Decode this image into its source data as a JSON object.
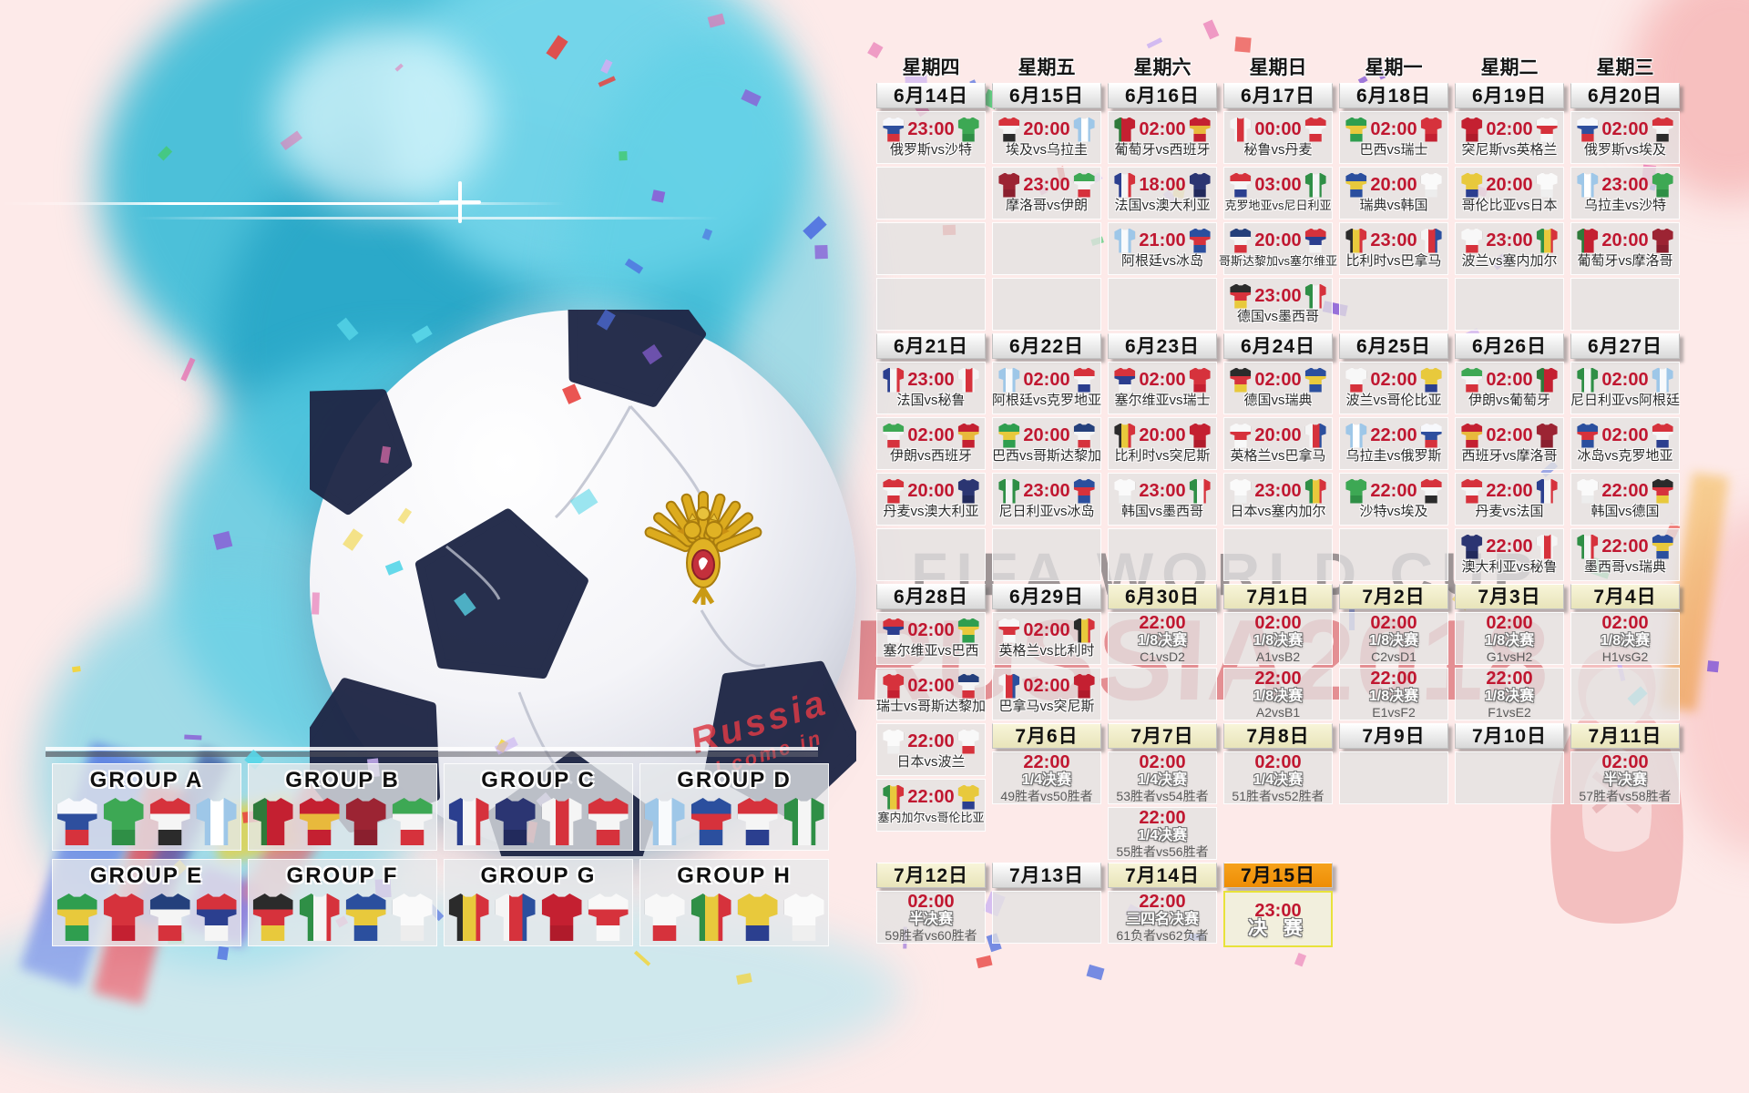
{
  "poster": {
    "watermark_title": "FIFA WORLD CUP",
    "watermark_subtitle": "RUSSIA2018",
    "ball_handwriting_line1": "Russia",
    "ball_handwriting_line2": "I come in"
  },
  "colors": {
    "accent_red": "#c01730",
    "cell_bg": "#e3e1e2",
    "header_gold": "#f2efcc",
    "header_orange": "#f0930f",
    "final_border": "#e8e23a",
    "teal_splash": "#4ec6de",
    "pink_bg": "#fdeae9"
  },
  "team_colors": {
    "俄罗斯": {
      "d": "h",
      "c": [
        "#f7f8fc",
        "#2e4f9e",
        "#d6323c"
      ]
    },
    "沙特": {
      "d": "h",
      "c": [
        "#3da854",
        "#3da854",
        "#2f8f46"
      ]
    },
    "埃及": {
      "d": "h",
      "c": [
        "#d6323c",
        "#f5f5f5",
        "#2b2b2b"
      ]
    },
    "乌拉圭": {
      "d": "v",
      "c": [
        "#9ec7e8",
        "#ffffff",
        "#9ec7e8"
      ]
    },
    "葡萄牙": {
      "d": "v",
      "c": [
        "#2f7a3a",
        "#c42031",
        "#c42031"
      ]
    },
    "西班牙": {
      "d": "h",
      "c": [
        "#c42031",
        "#e8b93c",
        "#c42031"
      ]
    },
    "摩洛哥": {
      "d": "h",
      "c": [
        "#9c2433",
        "#9c2433",
        "#8a1f2e"
      ]
    },
    "伊朗": {
      "d": "h",
      "c": [
        "#3da854",
        "#f5f5f5",
        "#d6323c"
      ]
    },
    "法国": {
      "d": "v",
      "c": [
        "#2b3f8f",
        "#f5f5f5",
        "#d6323c"
      ]
    },
    "澳大利亚": {
      "d": "h",
      "c": [
        "#2b3572",
        "#2b3572",
        "#222a5c"
      ]
    },
    "秘鲁": {
      "d": "v",
      "c": [
        "#f5f5f5",
        "#d6323c",
        "#f5f5f5"
      ]
    },
    "丹麦": {
      "d": "h",
      "c": [
        "#d6323c",
        "#f5f5f5",
        "#d6323c"
      ]
    },
    "阿根廷": {
      "d": "v",
      "c": [
        "#9ec7e8",
        "#f8fafc",
        "#9ec7e8"
      ]
    },
    "冰岛": {
      "d": "h",
      "c": [
        "#2b4f9e",
        "#d6323c",
        "#2b4f9e"
      ]
    },
    "克罗地亚": {
      "d": "h",
      "c": [
        "#d6323c",
        "#f5f5f5",
        "#2b3f8f"
      ]
    },
    "尼日利亚": {
      "d": "v",
      "c": [
        "#2f8f46",
        "#f5f5f5",
        "#2f8f46"
      ]
    },
    "巴西": {
      "d": "h",
      "c": [
        "#2f9e4f",
        "#e8c93c",
        "#2f9e4f"
      ]
    },
    "瑞士": {
      "d": "h",
      "c": [
        "#d6323c",
        "#d6323c",
        "#c42031"
      ]
    },
    "哥斯达黎加": {
      "d": "h",
      "c": [
        "#24407c",
        "#f5f5f5",
        "#d6323c"
      ]
    },
    "塞尔维亚": {
      "d": "h",
      "c": [
        "#d6323c",
        "#2b3f8f",
        "#f5f5f5"
      ]
    },
    "德国": {
      "d": "h",
      "c": [
        "#2b2b2b",
        "#d6323c",
        "#e8c93c"
      ]
    },
    "墨西哥": {
      "d": "v",
      "c": [
        "#2f8f46",
        "#f5f5f5",
        "#d6323c"
      ]
    },
    "瑞典": {
      "d": "h",
      "c": [
        "#2b4f9e",
        "#e8c93c",
        "#2b4f9e"
      ]
    },
    "韩国": {
      "d": "h",
      "c": [
        "#fafafa",
        "#fafafa",
        "#ededed"
      ]
    },
    "比利时": {
      "d": "v",
      "c": [
        "#2b2b2b",
        "#e8c93c",
        "#d6323c"
      ]
    },
    "巴拿马": {
      "d": "v",
      "c": [
        "#f5f5f5",
        "#d6323c",
        "#2b4f9e"
      ]
    },
    "突尼斯": {
      "d": "h",
      "c": [
        "#c42031",
        "#c42031",
        "#b01b2b"
      ]
    },
    "英格兰": {
      "d": "h",
      "c": [
        "#f8f8f8",
        "#d6323c",
        "#f8f8f8"
      ]
    },
    "波兰": {
      "d": "h",
      "c": [
        "#f8f8f8",
        "#f8f8f8",
        "#d6323c"
      ]
    },
    "塞内加尔": {
      "d": "v",
      "c": [
        "#2f8f46",
        "#e8c93c",
        "#d6323c"
      ]
    },
    "哥伦比亚": {
      "d": "h",
      "c": [
        "#e8c93c",
        "#e8c93c",
        "#2b3f8f"
      ]
    },
    "日本": {
      "d": "h",
      "c": [
        "#fafafa",
        "#fafafa",
        "#efefef"
      ]
    }
  },
  "groups": [
    {
      "label": "GROUP A",
      "teams": [
        "俄罗斯",
        "沙特",
        "埃及",
        "乌拉圭"
      ]
    },
    {
      "label": "GROUP B",
      "teams": [
        "葡萄牙",
        "西班牙",
        "摩洛哥",
        "伊朗"
      ]
    },
    {
      "label": "GROUP C",
      "teams": [
        "法国",
        "澳大利亚",
        "秘鲁",
        "丹麦"
      ]
    },
    {
      "label": "GROUP D",
      "teams": [
        "阿根廷",
        "冰岛",
        "克罗地亚",
        "尼日利亚"
      ]
    },
    {
      "label": "GROUP E",
      "teams": [
        "巴西",
        "瑞士",
        "哥斯达黎加",
        "塞尔维亚"
      ]
    },
    {
      "label": "GROUP F",
      "teams": [
        "德国",
        "墨西哥",
        "瑞典",
        "韩国"
      ]
    },
    {
      "label": "GROUP G",
      "teams": [
        "比利时",
        "巴拿马",
        "突尼斯",
        "英格兰"
      ]
    },
    {
      "label": "GROUP H",
      "teams": [
        "波兰",
        "塞内加尔",
        "哥伦比亚",
        "日本"
      ]
    }
  ],
  "calendar": {
    "columns": [
      {
        "weekday": "星期四",
        "items": [
          {
            "t": "d",
            "l": "6月14日",
            "s": "p"
          },
          {
            "t": "m",
            "time": "23:00",
            "h": "俄罗斯",
            "a": "沙特"
          },
          {
            "t": "e"
          },
          {
            "t": "e"
          },
          {
            "t": "e"
          },
          {
            "t": "d",
            "l": "6月21日",
            "s": "p"
          },
          {
            "t": "m",
            "time": "23:00",
            "h": "法国",
            "a": "秘鲁"
          },
          {
            "t": "m",
            "time": "02:00",
            "h": "伊朗",
            "a": "西班牙"
          },
          {
            "t": "m",
            "time": "20:00",
            "h": "丹麦",
            "a": "澳大利亚"
          },
          {
            "t": "e"
          },
          {
            "t": "d",
            "l": "6月28日",
            "s": "p"
          },
          {
            "t": "m",
            "time": "02:00",
            "h": "塞尔维亚",
            "a": "巴西"
          },
          {
            "t": "m",
            "time": "02:00",
            "h": "瑞士",
            "a": "哥斯达黎加"
          },
          {
            "t": "m",
            "time": "22:00",
            "h": "日本",
            "a": "波兰"
          },
          {
            "t": "m",
            "time": "22:00",
            "h": "塞内加尔",
            "a": "哥伦比亚"
          },
          {
            "t": "s",
            "hh": 28
          },
          {
            "t": "d",
            "l": "7月12日",
            "s": "g"
          },
          {
            "t": "k",
            "time": "02:00",
            "r": "半决赛",
            "p": "59胜者vs60胜者"
          }
        ]
      },
      {
        "weekday": "星期五",
        "items": [
          {
            "t": "d",
            "l": "6月15日",
            "s": "p"
          },
          {
            "t": "m",
            "time": "20:00",
            "h": "埃及",
            "a": "乌拉圭"
          },
          {
            "t": "m",
            "time": "23:00",
            "h": "摩洛哥",
            "a": "伊朗"
          },
          {
            "t": "e"
          },
          {
            "t": "e"
          },
          {
            "t": "d",
            "l": "6月22日",
            "s": "p"
          },
          {
            "t": "m",
            "time": "02:00",
            "h": "阿根廷",
            "a": "克罗地亚"
          },
          {
            "t": "m",
            "time": "20:00",
            "h": "巴西",
            "a": "哥斯达黎加"
          },
          {
            "t": "m",
            "time": "23:00",
            "h": "尼日利亚",
            "a": "冰岛"
          },
          {
            "t": "e"
          },
          {
            "t": "d",
            "l": "6月29日",
            "s": "p"
          },
          {
            "t": "m",
            "time": "02:00",
            "h": "英格兰",
            "a": "比利时"
          },
          {
            "t": "m",
            "time": "02:00",
            "h": "巴拿马",
            "a": "突尼斯"
          },
          {
            "t": "d",
            "l": "7月6日",
            "s": "g"
          },
          {
            "t": "k",
            "time": "22:00",
            "r": "1/4决赛",
            "p": "49胜者vs50胜者"
          },
          {
            "t": "s",
            "hh": 58
          },
          {
            "t": "d",
            "l": "7月13日",
            "s": "p"
          },
          {
            "t": "e"
          }
        ]
      },
      {
        "weekday": "星期六",
        "items": [
          {
            "t": "d",
            "l": "6月16日",
            "s": "p"
          },
          {
            "t": "m",
            "time": "02:00",
            "h": "葡萄牙",
            "a": "西班牙"
          },
          {
            "t": "m",
            "time": "18:00",
            "h": "法国",
            "a": "澳大利亚"
          },
          {
            "t": "m",
            "time": "21:00",
            "h": "阿根廷",
            "a": "冰岛"
          },
          {
            "t": "e"
          },
          {
            "t": "d",
            "l": "6月23日",
            "s": "p"
          },
          {
            "t": "m",
            "time": "02:00",
            "h": "塞尔维亚",
            "a": "瑞士"
          },
          {
            "t": "m",
            "time": "20:00",
            "h": "比利时",
            "a": "突尼斯"
          },
          {
            "t": "m",
            "time": "23:00",
            "h": "韩国",
            "a": "墨西哥"
          },
          {
            "t": "e"
          },
          {
            "t": "d",
            "l": "6月30日",
            "s": "g"
          },
          {
            "t": "k",
            "time": "22:00",
            "r": "1/8决赛",
            "p": "C1vsD2"
          },
          {
            "t": "e"
          },
          {
            "t": "d",
            "l": "7月7日",
            "s": "g"
          },
          {
            "t": "k",
            "time": "02:00",
            "r": "1/4决赛",
            "p": "53胜者vs54胜者"
          },
          {
            "t": "k",
            "time": "22:00",
            "r": "1/4决赛",
            "p": "55胜者vs56胜者"
          },
          {
            "t": "d",
            "l": "7月14日",
            "s": "g"
          },
          {
            "t": "k",
            "time": "22:00",
            "r": "三四名决赛",
            "p": "61负者vs62负者"
          }
        ]
      },
      {
        "weekday": "星期日",
        "items": [
          {
            "t": "d",
            "l": "6月17日",
            "s": "p"
          },
          {
            "t": "m",
            "time": "00:00",
            "h": "秘鲁",
            "a": "丹麦"
          },
          {
            "t": "m",
            "time": "03:00",
            "h": "克罗地亚",
            "a": "尼日利亚"
          },
          {
            "t": "m",
            "time": "20:00",
            "h": "哥斯达黎加",
            "a": "塞尔维亚"
          },
          {
            "t": "m",
            "time": "23:00",
            "h": "德国",
            "a": "墨西哥"
          },
          {
            "t": "d",
            "l": "6月24日",
            "s": "p"
          },
          {
            "t": "m",
            "time": "02:00",
            "h": "德国",
            "a": "瑞典"
          },
          {
            "t": "m",
            "time": "20:00",
            "h": "英格兰",
            "a": "巴拿马"
          },
          {
            "t": "m",
            "time": "23:00",
            "h": "日本",
            "a": "塞内加尔"
          },
          {
            "t": "e"
          },
          {
            "t": "d",
            "l": "7月1日",
            "s": "g"
          },
          {
            "t": "k",
            "time": "02:00",
            "r": "1/8决赛",
            "p": "A1vsB2"
          },
          {
            "t": "k",
            "time": "22:00",
            "r": "1/8决赛",
            "p": "A2vsB1"
          },
          {
            "t": "d",
            "l": "7月8日",
            "s": "g"
          },
          {
            "t": "k",
            "time": "02:00",
            "r": "1/4决赛",
            "p": "51胜者vs52胜者"
          },
          {
            "t": "s",
            "hh": 58
          },
          {
            "t": "d",
            "l": "7月15日",
            "s": "o"
          },
          {
            "t": "f",
            "time": "23:00",
            "r": "决 赛"
          }
        ]
      },
      {
        "weekday": "星期一",
        "items": [
          {
            "t": "d",
            "l": "6月18日",
            "s": "p"
          },
          {
            "t": "m",
            "time": "02:00",
            "h": "巴西",
            "a": "瑞士"
          },
          {
            "t": "m",
            "time": "20:00",
            "h": "瑞典",
            "a": "韩国"
          },
          {
            "t": "m",
            "time": "23:00",
            "h": "比利时",
            "a": "巴拿马"
          },
          {
            "t": "e"
          },
          {
            "t": "d",
            "l": "6月25日",
            "s": "p"
          },
          {
            "t": "m",
            "time": "02:00",
            "h": "波兰",
            "a": "哥伦比亚"
          },
          {
            "t": "m",
            "time": "22:00",
            "h": "乌拉圭",
            "a": "俄罗斯"
          },
          {
            "t": "m",
            "time": "22:00",
            "h": "沙特",
            "a": "埃及"
          },
          {
            "t": "e"
          },
          {
            "t": "d",
            "l": "7月2日",
            "s": "g"
          },
          {
            "t": "k",
            "time": "02:00",
            "r": "1/8决赛",
            "p": "C2vsD1"
          },
          {
            "t": "k",
            "time": "22:00",
            "r": "1/8决赛",
            "p": "E1vsF2"
          },
          {
            "t": "d",
            "l": "7月9日",
            "s": "p"
          },
          {
            "t": "e"
          }
        ]
      },
      {
        "weekday": "星期二",
        "items": [
          {
            "t": "d",
            "l": "6月19日",
            "s": "p"
          },
          {
            "t": "m",
            "time": "02:00",
            "h": "突尼斯",
            "a": "英格兰"
          },
          {
            "t": "m",
            "time": "20:00",
            "h": "哥伦比亚",
            "a": "日本"
          },
          {
            "t": "m",
            "time": "23:00",
            "h": "波兰",
            "a": "塞内加尔"
          },
          {
            "t": "e"
          },
          {
            "t": "d",
            "l": "6月26日",
            "s": "p"
          },
          {
            "t": "m",
            "time": "02:00",
            "h": "伊朗",
            "a": "葡萄牙"
          },
          {
            "t": "m",
            "time": "02:00",
            "h": "西班牙",
            "a": "摩洛哥"
          },
          {
            "t": "m",
            "time": "22:00",
            "h": "丹麦",
            "a": "法国"
          },
          {
            "t": "m",
            "time": "22:00",
            "h": "澳大利亚",
            "a": "秘鲁"
          },
          {
            "t": "d",
            "l": "7月3日",
            "s": "g"
          },
          {
            "t": "k",
            "time": "02:00",
            "r": "1/8决赛",
            "p": "G1vsH2"
          },
          {
            "t": "k",
            "time": "22:00",
            "r": "1/8决赛",
            "p": "F1vsE2"
          },
          {
            "t": "d",
            "l": "7月10日",
            "s": "p"
          },
          {
            "t": "e"
          }
        ]
      },
      {
        "weekday": "星期三",
        "items": [
          {
            "t": "d",
            "l": "6月20日",
            "s": "p"
          },
          {
            "t": "m",
            "time": "02:00",
            "h": "俄罗斯",
            "a": "埃及"
          },
          {
            "t": "m",
            "time": "23:00",
            "h": "乌拉圭",
            "a": "沙特"
          },
          {
            "t": "m",
            "time": "20:00",
            "h": "葡萄牙",
            "a": "摩洛哥"
          },
          {
            "t": "e"
          },
          {
            "t": "d",
            "l": "6月27日",
            "s": "p"
          },
          {
            "t": "m",
            "time": "02:00",
            "h": "尼日利亚",
            "a": "阿根廷"
          },
          {
            "t": "m",
            "time": "02:00",
            "h": "冰岛",
            "a": "克罗地亚"
          },
          {
            "t": "m",
            "time": "22:00",
            "h": "韩国",
            "a": "德国"
          },
          {
            "t": "m",
            "time": "22:00",
            "h": "墨西哥",
            "a": "瑞典"
          },
          {
            "t": "d",
            "l": "7月4日",
            "s": "g"
          },
          {
            "t": "k",
            "time": "02:00",
            "r": "1/8决赛",
            "p": "H1vsG2"
          },
          {
            "t": "e"
          },
          {
            "t": "d",
            "l": "7月11日",
            "s": "g"
          },
          {
            "t": "k",
            "time": "02:00",
            "r": "半决赛",
            "p": "57胜者vs58胜者"
          }
        ]
      }
    ]
  }
}
